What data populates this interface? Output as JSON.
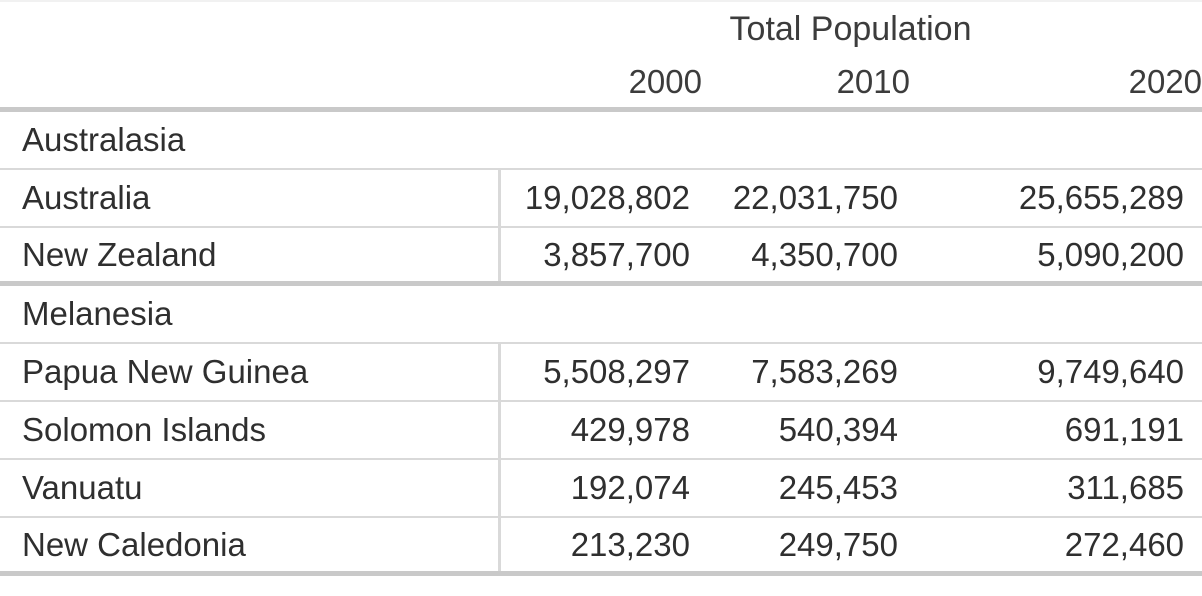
{
  "table": {
    "title": "Total Population",
    "year_headers": [
      "2000",
      "2010",
      "2020"
    ],
    "sections": [
      {
        "label": "Australasia",
        "rows": [
          {
            "name": "Australia",
            "values": [
              "19,028,802",
              "22,031,750",
              "25,655,289"
            ]
          },
          {
            "name": "New Zealand",
            "values": [
              "3,857,700",
              "4,350,700",
              "5,090,200"
            ]
          }
        ]
      },
      {
        "label": "Melanesia",
        "rows": [
          {
            "name": "Papua New Guinea",
            "values": [
              "5,508,297",
              "7,583,269",
              "9,749,640"
            ]
          },
          {
            "name": "Solomon Islands",
            "values": [
              "429,978",
              "540,394",
              "691,191"
            ]
          },
          {
            "name": "Vanuatu",
            "values": [
              "192,074",
              "245,453",
              "311,685"
            ]
          },
          {
            "name": "New Caledonia",
            "values": [
              "213,230",
              "249,750",
              "272,460"
            ]
          }
        ]
      }
    ]
  },
  "colors": {
    "text": "#2f2f2f",
    "header-text": "#3c3c3c",
    "grid-thin": "#d9d9d9",
    "grid-thick": "#c9c9c9",
    "bg": "#ffffff"
  },
  "chart_data": {
    "type": "table",
    "title": "Total Population",
    "columns": [
      "2000",
      "2010",
      "2020"
    ],
    "sections": [
      {
        "name": "Australasia",
        "rows": [
          {
            "name": "Australia",
            "values": [
              19028802,
              22031750,
              25655289
            ]
          },
          {
            "name": "New Zealand",
            "values": [
              3857700,
              4350700,
              5090200
            ]
          }
        ]
      },
      {
        "name": "Melanesia",
        "rows": [
          {
            "name": "Papua New Guinea",
            "values": [
              5508297,
              7583269,
              9749640
            ]
          },
          {
            "name": "Solomon Islands",
            "values": [
              429978,
              540394,
              691191
            ]
          },
          {
            "name": "Vanuatu",
            "values": [
              192074,
              245453,
              311685
            ]
          },
          {
            "name": "New Caledonia",
            "values": [
              213230,
              249750,
              272460
            ]
          }
        ]
      }
    ]
  }
}
